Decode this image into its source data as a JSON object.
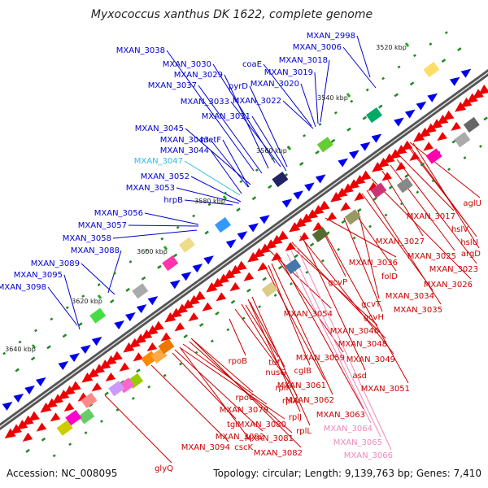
{
  "title": "Myxococcus xanthus DK 1622, complete genome",
  "footer": {
    "accession": "Accession: NC_008095",
    "summary": "Topology: circular; Length: 9,139,763 bp; Genes: 7,410"
  },
  "colors": {
    "forward_label": "#0000cc",
    "highlight_forward": "#33bbdd",
    "reverse_label": "#cc0000",
    "highlight_reverse": "#ee88bb",
    "backbone": "#777777",
    "forward_gene": "#0000ee",
    "reverse_gene": "#ee0000"
  },
  "ticks": [
    "3520 kbp",
    "3540 kbp",
    "3560 kbp",
    "3580 kbp",
    "3600 kbp",
    "3620 kbp",
    "3640 kbp"
  ],
  "forward_labels": [
    "MXAN_2998",
    "MXAN_3006",
    "MXAN_3038",
    "MXAN_3030",
    "coaE",
    "MXAN_3018",
    "MXAN_3029",
    "MXAN_3019",
    "MXAN_3037",
    "pyrD",
    "MXAN_3020",
    "MXAN_3033",
    "MXAN_3022",
    "MXAN_3031",
    "MXAN_3045",
    "MXAN_3043",
    "metF",
    "MXAN_3044",
    "MXAN_3047",
    "MXAN_3052",
    "MXAN_3053",
    "hrpB",
    "MXAN_3056",
    "MXAN_3057",
    "MXAN_3058",
    "MXAN_3088",
    "MXAN_3089",
    "MXAN_3095",
    "MXAN_3098"
  ],
  "reverse_labels": [
    "aglU",
    "MXAN_3017",
    "hslV",
    "hslU",
    "argD",
    "MXAN_3027",
    "MXAN_3025",
    "MXAN_3023",
    "MXAN_3036",
    "folD",
    "MXAN_3026",
    "gcvP",
    "MXAN_3034",
    "gcvT",
    "MXAN_3035",
    "gcvH",
    "MXAN_3054",
    "MXAN_3046",
    "MXAN_3048",
    "MXAN_3059",
    "MXAN_3049",
    "rpoB",
    "tuf",
    "nusG",
    "cglB",
    "asd",
    "MXAN_3061",
    "MXAN_3051",
    "rplK",
    "MXAN_3062",
    "rplA",
    "rpoC",
    "MXAN_3063",
    "rplJ",
    "MXAN_3079",
    "MXAN_3064",
    "rplL",
    "MXAN_3080",
    "tgl",
    "MXAN_3092",
    "MXAN_3081",
    "MXAN_3065",
    "MXAN_3094",
    "cscK",
    "MXAN_3082",
    "MXAN_3066",
    "glyQ"
  ]
}
